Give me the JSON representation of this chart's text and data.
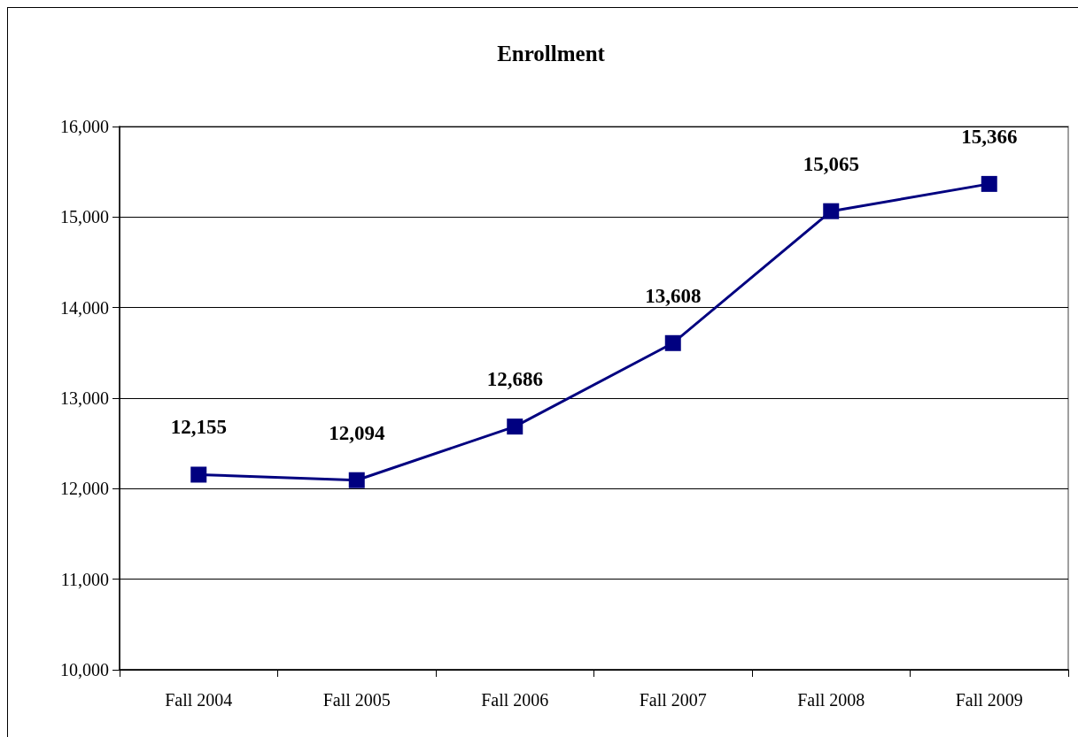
{
  "chart_data": {
    "type": "line",
    "title": "Enrollment",
    "categories": [
      "Fall 2004",
      "Fall 2005",
      "Fall 2006",
      "Fall 2007",
      "Fall 2008",
      "Fall 2009"
    ],
    "values": [
      12155,
      12094,
      12686,
      13608,
      15065,
      15366
    ],
    "value_labels": [
      "12,155",
      "12,094",
      "12,686",
      "13,608",
      "15,065",
      "15,366"
    ],
    "color": "#000080",
    "ylim": [
      10000,
      16000
    ],
    "yticks": [
      {
        "value": 10000,
        "label": "10,000"
      },
      {
        "value": 11000,
        "label": "11,000"
      },
      {
        "value": 12000,
        "label": "12,000"
      },
      {
        "value": 13000,
        "label": "13,000"
      },
      {
        "value": 14000,
        "label": "14,000"
      },
      {
        "value": 15000,
        "label": "15,000"
      },
      {
        "value": 16000,
        "label": "16,000"
      }
    ],
    "grid": "y",
    "marker": "square",
    "line_style": "solid"
  }
}
